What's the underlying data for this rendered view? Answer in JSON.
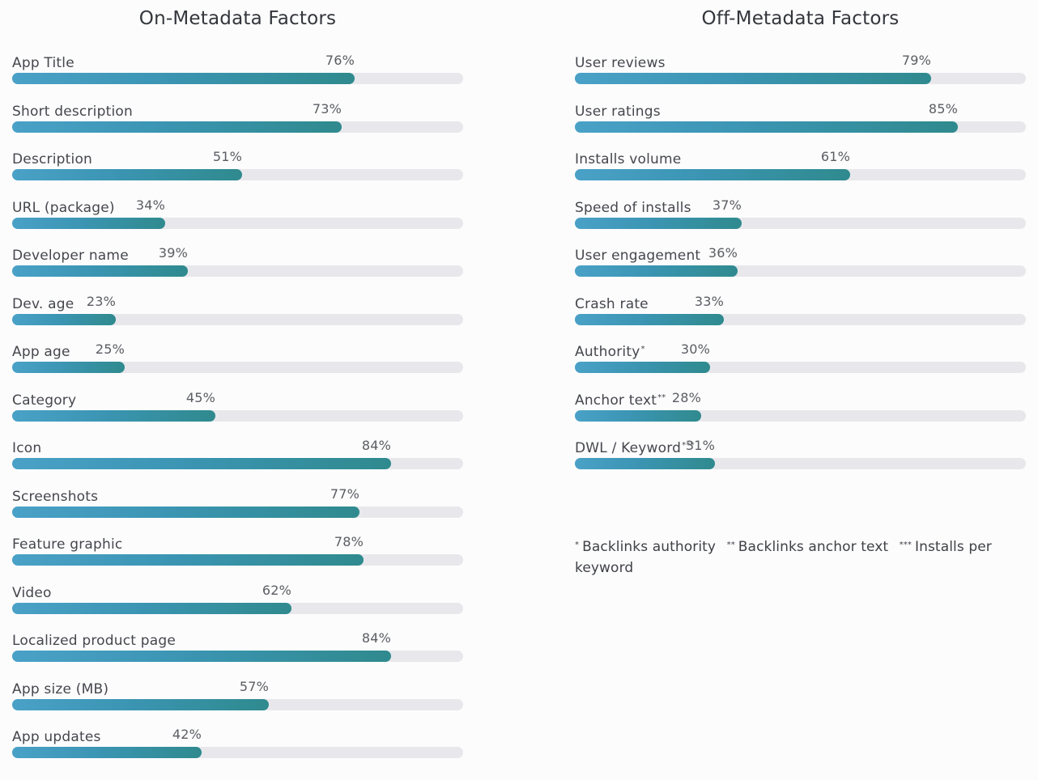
{
  "chart_data": [
    {
      "type": "bar",
      "orientation": "horizontal",
      "title": "On-Metadata Factors",
      "xlim": [
        0,
        100
      ],
      "unit": "%",
      "categories": [
        "App Title",
        "Short description",
        "Description",
        "URL (package)",
        "Developer name",
        "Dev. age",
        "App age",
        "Category",
        "Icon",
        "Screenshots",
        "Feature graphic",
        "Video",
        "Localized product page",
        "App size (MB)",
        "App updates"
      ],
      "values": [
        76,
        73,
        51,
        34,
        39,
        23,
        25,
        45,
        84,
        77,
        78,
        62,
        84,
        57,
        42
      ],
      "value_labels": [
        "76%",
        "73%",
        "51%",
        "34%",
        "39%",
        "23%",
        "25%",
        "45%",
        "84%",
        "77%",
        "78%",
        "62%",
        "84%",
        "57%",
        "42%"
      ]
    },
    {
      "type": "bar",
      "orientation": "horizontal",
      "title": "Off-Metadata Factors",
      "xlim": [
        0,
        100
      ],
      "unit": "%",
      "categories": [
        "User reviews",
        "User ratings",
        "Installs volume",
        "Speed of installs",
        "User engagement",
        "Crash rate",
        "Authority",
        "Anchor text",
        "DWL / Keyword"
      ],
      "category_marks": [
        "",
        "",
        "",
        "",
        "",
        "",
        "*",
        "**",
        "***"
      ],
      "values": [
        79,
        85,
        61,
        37,
        36,
        33,
        30,
        28,
        31
      ],
      "value_labels": [
        "79%",
        "85%",
        "61%",
        "37%",
        "36%",
        "33%",
        "30%",
        "28%",
        "31%"
      ]
    }
  ],
  "footnotes": [
    {
      "mark": "*",
      "text": "Backlinks authority"
    },
    {
      "mark": "**",
      "text": "Backlinks anchor text"
    },
    {
      "mark": "***",
      "text": "Installs per keyword"
    }
  ],
  "colors": {
    "bar_start": "#4aa1c7",
    "bar_end": "#2f8a8e",
    "track": "#e8e8ec"
  }
}
